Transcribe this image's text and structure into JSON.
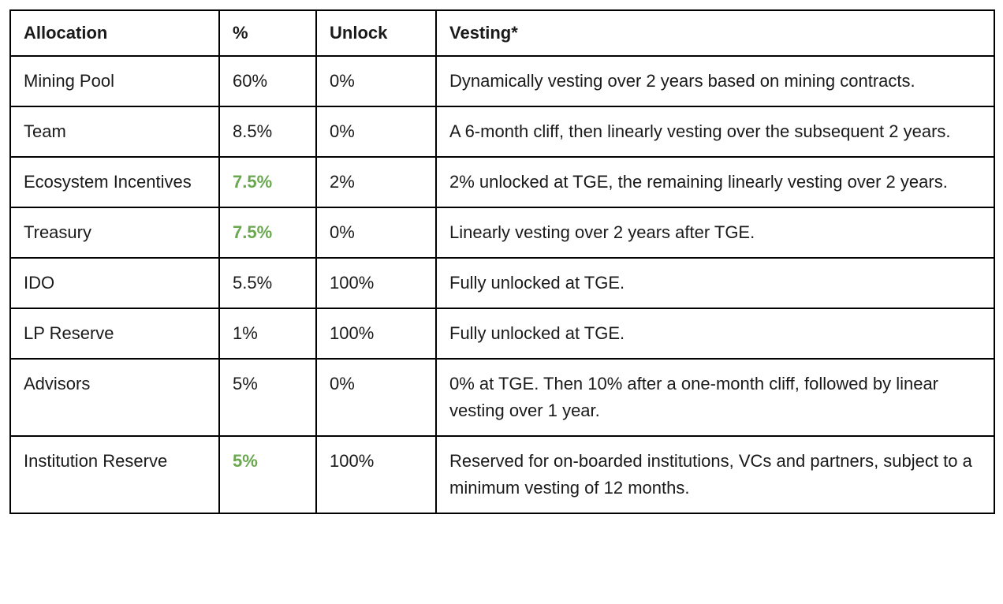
{
  "colors": {
    "highlight_green": "#6aa84f",
    "border": "#000000",
    "background": "#ffffff"
  },
  "table": {
    "headers": [
      "Allocation",
      "%",
      "Unlock",
      "Vesting*"
    ],
    "rows": [
      {
        "allocation": "Mining Pool",
        "pct": "60%",
        "pct_highlight": false,
        "unlock": "0%",
        "vesting": "Dynamically vesting over 2 years based on mining contracts."
      },
      {
        "allocation": "Team",
        "pct": "8.5%",
        "pct_highlight": false,
        "unlock": "0%",
        "vesting": "A 6-month cliff, then linearly vesting over the subsequent 2 years."
      },
      {
        "allocation": "Ecosystem Incentives",
        "pct": "7.5%",
        "pct_highlight": true,
        "unlock": "2%",
        "vesting": "2% unlocked at TGE, the remaining linearly vesting over 2 years."
      },
      {
        "allocation": "Treasury",
        "pct": "7.5%",
        "pct_highlight": true,
        "unlock": "0%",
        "vesting": "Linearly vesting over 2 years after TGE."
      },
      {
        "allocation": "IDO",
        "pct": "5.5%",
        "pct_highlight": false,
        "unlock": "100%",
        "vesting": "Fully unlocked at TGE."
      },
      {
        "allocation": "LP Reserve",
        "pct": "1%",
        "pct_highlight": false,
        "unlock": "100%",
        "vesting": "Fully unlocked at TGE."
      },
      {
        "allocation": "Advisors",
        "pct": "5%",
        "pct_highlight": false,
        "unlock": "0%",
        "vesting": "0% at TGE. Then 10% after a one-month cliff, followed by linear vesting over 1 year."
      },
      {
        "allocation": "Institution Reserve",
        "pct": "5%",
        "pct_highlight": true,
        "unlock": "100%",
        "vesting": "Reserved for on-boarded institutions, VCs and partners, subject to a minimum vesting of 12 months."
      }
    ]
  }
}
